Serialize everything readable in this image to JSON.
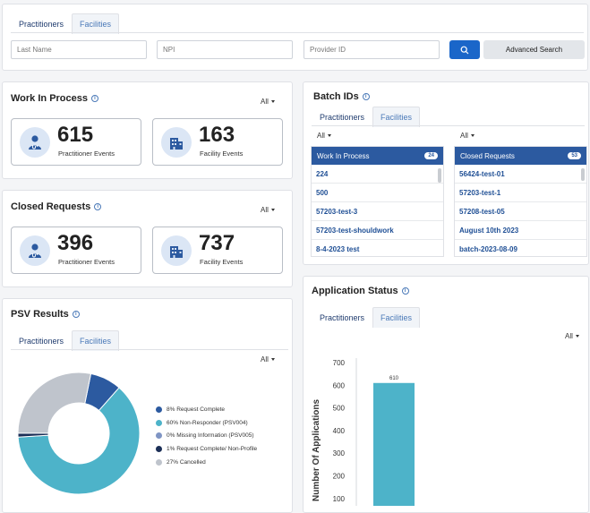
{
  "search": {
    "tabs": [
      "Practitioners",
      "Facilities"
    ],
    "last_name_placeholder": "Last Name",
    "npi_placeholder": "NPI",
    "provider_id_placeholder": "Provider ID",
    "advanced_label": "Advanced Search"
  },
  "wip": {
    "title": "Work In Process",
    "filter": "All",
    "practitioner": {
      "value": "615",
      "label": "Practitioner Events"
    },
    "facility": {
      "value": "163",
      "label": "Facility Events"
    }
  },
  "closed": {
    "title": "Closed Requests",
    "filter": "All",
    "practitioner": {
      "value": "396",
      "label": "Practitioner Events"
    },
    "facility": {
      "value": "737",
      "label": "Facility Events"
    }
  },
  "batch": {
    "title": "Batch IDs",
    "tabs": [
      "Practitioners",
      "Facilities"
    ],
    "left_filter": "All",
    "right_filter": "All",
    "wip_list": {
      "title": "Work In Process",
      "count": "24",
      "items": [
        "224",
        "500",
        "57203-test-3",
        "57203-test-shouldwork",
        "8-4-2023 test"
      ]
    },
    "closed_list": {
      "title": "Closed Requests",
      "count": "53",
      "items": [
        "56424-test-01",
        "57203-test-1",
        "57208-test-05",
        "August 10th 2023",
        "batch-2023-08-09"
      ]
    }
  },
  "psv": {
    "title": "PSV Results",
    "tabs": [
      "Practitioners",
      "Facilities"
    ],
    "filter": "All",
    "legend": [
      {
        "label": "8%  Request Complete",
        "color": "#2c5aa0"
      },
      {
        "label": "60%  Non-Responder (PSV004)",
        "color": "#4db3c9"
      },
      {
        "label": "0%  Missing Information (PSV005)",
        "color": "#7f95c4"
      },
      {
        "label": "1%  Request Complete/ Non-Profile",
        "color": "#1c2f57"
      },
      {
        "label": "27%  Cancelled",
        "color": "#bfc4cc"
      }
    ]
  },
  "app_status": {
    "title": "Application Status",
    "tabs": [
      "Practitioners",
      "Facilities"
    ],
    "filter": "All"
  },
  "chart_data": [
    {
      "type": "pie",
      "title": "PSV Results",
      "categories": [
        "Request Complete",
        "Non-Responder (PSV004)",
        "Missing Information (PSV005)",
        "Request Complete/ Non-Profile",
        "Cancelled"
      ],
      "values": [
        8,
        60,
        0,
        1,
        27
      ],
      "colors": [
        "#2c5aa0",
        "#4db3c9",
        "#7f95c4",
        "#1c2f57",
        "#bfc4cc"
      ],
      "legend": "right"
    },
    {
      "type": "bar",
      "title": "Application Status",
      "ylabel": "Number Of Applications",
      "categories": [
        ""
      ],
      "values": [
        610
      ],
      "data_labels": [
        "610"
      ],
      "yticks": [
        100,
        200,
        300,
        400,
        500,
        600,
        700
      ],
      "ylim": [
        0,
        700
      ],
      "grid": false,
      "color": "#4db3c9"
    }
  ]
}
